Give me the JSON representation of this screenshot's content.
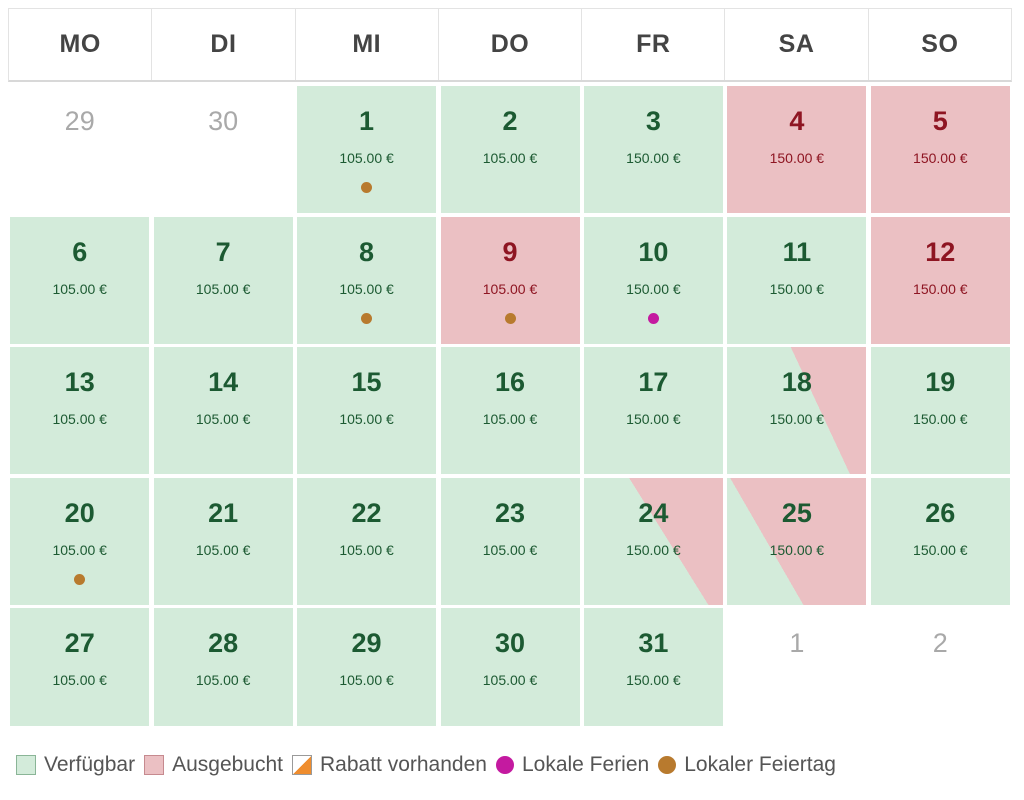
{
  "weekdays": [
    "MO",
    "DI",
    "MI",
    "DO",
    "FR",
    "SA",
    "SO"
  ],
  "weeks": [
    [
      {
        "day": "29",
        "status": "other",
        "price": "",
        "marker": ""
      },
      {
        "day": "30",
        "status": "other",
        "price": "",
        "marker": ""
      },
      {
        "day": "1",
        "status": "available",
        "price": "105.00 €",
        "marker": "holiday"
      },
      {
        "day": "2",
        "status": "available",
        "price": "105.00 €",
        "marker": ""
      },
      {
        "day": "3",
        "status": "available",
        "price": "150.00 €",
        "marker": ""
      },
      {
        "day": "4",
        "status": "booked",
        "price": "150.00 €",
        "marker": ""
      },
      {
        "day": "5",
        "status": "booked",
        "price": "150.00 €",
        "marker": ""
      }
    ],
    [
      {
        "day": "6",
        "status": "available",
        "price": "105.00 €",
        "marker": ""
      },
      {
        "day": "7",
        "status": "available",
        "price": "105.00 €",
        "marker": ""
      },
      {
        "day": "8",
        "status": "available",
        "price": "105.00 €",
        "marker": "holiday"
      },
      {
        "day": "9",
        "status": "booked",
        "price": "105.00 €",
        "marker": "holiday"
      },
      {
        "day": "10",
        "status": "available",
        "price": "150.00 €",
        "marker": "vacation"
      },
      {
        "day": "11",
        "status": "available",
        "price": "150.00 €",
        "marker": ""
      },
      {
        "day": "12",
        "status": "booked",
        "price": "150.00 €",
        "marker": ""
      }
    ],
    [
      {
        "day": "13",
        "status": "available",
        "price": "105.00 €",
        "marker": ""
      },
      {
        "day": "14",
        "status": "available",
        "price": "105.00 €",
        "marker": ""
      },
      {
        "day": "15",
        "status": "available",
        "price": "105.00 €",
        "marker": ""
      },
      {
        "day": "16",
        "status": "available",
        "price": "105.00 €",
        "marker": ""
      },
      {
        "day": "17",
        "status": "available",
        "price": "150.00 €",
        "marker": ""
      },
      {
        "day": "18",
        "status": "checkin-booked",
        "price": "150.00 €",
        "marker": ""
      },
      {
        "day": "19",
        "status": "available",
        "price": "150.00 €",
        "marker": ""
      }
    ],
    [
      {
        "day": "20",
        "status": "available",
        "price": "105.00 €",
        "marker": "holiday"
      },
      {
        "day": "21",
        "status": "available",
        "price": "105.00 €",
        "marker": ""
      },
      {
        "day": "22",
        "status": "available",
        "price": "105.00 €",
        "marker": ""
      },
      {
        "day": "23",
        "status": "available",
        "price": "105.00 €",
        "marker": ""
      },
      {
        "day": "24",
        "status": "checkin-booked",
        "price": "150.00 €",
        "marker": ""
      },
      {
        "day": "25",
        "status": "checkout-booked",
        "price": "150.00 €",
        "marker": ""
      },
      {
        "day": "26",
        "status": "available",
        "price": "150.00 €",
        "marker": ""
      }
    ],
    [
      {
        "day": "27",
        "status": "available",
        "price": "105.00 €",
        "marker": ""
      },
      {
        "day": "28",
        "status": "available",
        "price": "105.00 €",
        "marker": ""
      },
      {
        "day": "29",
        "status": "available",
        "price": "105.00 €",
        "marker": ""
      },
      {
        "day": "30",
        "status": "available",
        "price": "105.00 €",
        "marker": ""
      },
      {
        "day": "31",
        "status": "available",
        "price": "150.00 €",
        "marker": ""
      },
      {
        "day": "1",
        "status": "other",
        "price": "",
        "marker": ""
      },
      {
        "day": "2",
        "status": "other",
        "price": "",
        "marker": ""
      }
    ]
  ],
  "legend": {
    "available": "Verfügbar",
    "booked": "Ausgebucht",
    "discount": "Rabatt vorhanden",
    "vacation": "Lokale Ferien",
    "holiday": "Lokaler Feiertag"
  },
  "colors": {
    "available": "#d3ebda",
    "booked": "#ebc0c3",
    "discount": "#ef8d2e",
    "vacation": "#c41aa0",
    "holiday": "#b87a2e"
  }
}
